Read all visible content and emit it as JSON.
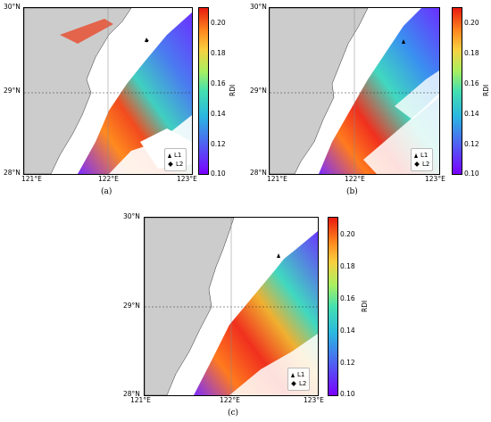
{
  "figure": {
    "panels": [
      {
        "id": "a",
        "caption": "(a)"
      },
      {
        "id": "b",
        "caption": "(b)"
      },
      {
        "id": "c",
        "caption": "(c)"
      }
    ],
    "lat_ticks": [
      "30°N",
      "29°N",
      "28°N"
    ],
    "lon_ticks": [
      "121°E",
      "122°E",
      "123°E"
    ],
    "colorbar": {
      "title": "RDI",
      "ticks": [
        "0.20",
        "0.18",
        "0.16",
        "0.14",
        "0.12",
        "0.10"
      ],
      "min": 0.1,
      "max": 0.21
    },
    "legend": {
      "items": [
        {
          "label": "L1",
          "marker": "triangle"
        },
        {
          "label": "L2",
          "marker": "diamond"
        }
      ]
    }
  },
  "chart_data": [
    {
      "type": "heatmap",
      "panel": "a",
      "colorbar_title": "RDI",
      "color_range": [
        0.1,
        0.21
      ],
      "x_ticks": [
        "121°E",
        "122°E",
        "123°E"
      ],
      "y_ticks": [
        "28°N",
        "29°N",
        "30°N"
      ],
      "legend": [
        "L1",
        "L2"
      ]
    },
    {
      "type": "heatmap",
      "panel": "b",
      "colorbar_title": "RDI",
      "color_range": [
        0.1,
        0.21
      ],
      "x_ticks": [
        "121°E",
        "122°E",
        "123°E"
      ],
      "y_ticks": [
        "28°N",
        "29°N",
        "30°N"
      ],
      "legend": [
        "L1",
        "L2"
      ]
    },
    {
      "type": "heatmap",
      "panel": "c",
      "colorbar_title": "RDI",
      "color_range": [
        0.1,
        0.21
      ],
      "x_ticks": [
        "121°E",
        "122°E",
        "123°E"
      ],
      "y_ticks": [
        "28°N",
        "29°N",
        "30°N"
      ],
      "legend": [
        "L1",
        "L2"
      ]
    }
  ]
}
